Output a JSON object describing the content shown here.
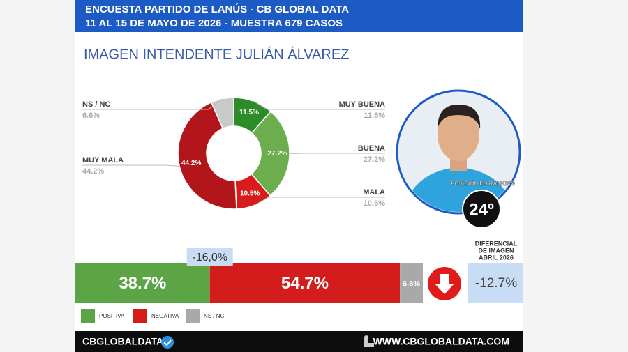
{
  "header": {
    "line1": "ENCUESTA PARTIDO DE LANÚS - CB GLOBAL DATA",
    "line2": "11 AL 15 DE MAYO DE 2026 - MUESTRA 679 CASOS"
  },
  "chart_data": [
    {
      "type": "donut",
      "title": "IMAGEN INTENDENTE  JULIÁN ÁLVAREZ",
      "categories": [
        "MUY BUENA",
        "BUENA",
        "MALA",
        "MUY MALA",
        "NS / NC"
      ],
      "values": [
        11.5,
        27.2,
        10.5,
        44.2,
        6.6
      ],
      "value_labels": [
        "11.5%",
        "27.2%",
        "10.5%",
        "44.2%",
        "6.6%"
      ],
      "colors": [
        "#2e8b2a",
        "#6cae4e",
        "#d81b1b",
        "#b3161a",
        "#c9c9c9"
      ]
    },
    {
      "type": "stacked-bar",
      "categories": [
        "POSITIVA",
        "NEGATIVA",
        "NS / NC"
      ],
      "values": [
        38.7,
        54.7,
        6.6
      ],
      "value_labels": [
        "38.7%",
        "54.7%",
        "6.6%"
      ],
      "colors": [
        "#5ca547",
        "#d31d1d",
        "#a9a9a9"
      ],
      "annotation": "-16,0%"
    }
  ],
  "ranking": {
    "label": "POSICIÓN EN RANKING",
    "value": "24º"
  },
  "differential": {
    "label_lines": [
      "DIFERENCIAL",
      "DE IMAGEN",
      "ABRIL 2026"
    ],
    "value": "-12.7%"
  },
  "footer": {
    "brand": "CBGLOBALDATA",
    "url": "WWW.CBGLOBALDATA.COM"
  }
}
